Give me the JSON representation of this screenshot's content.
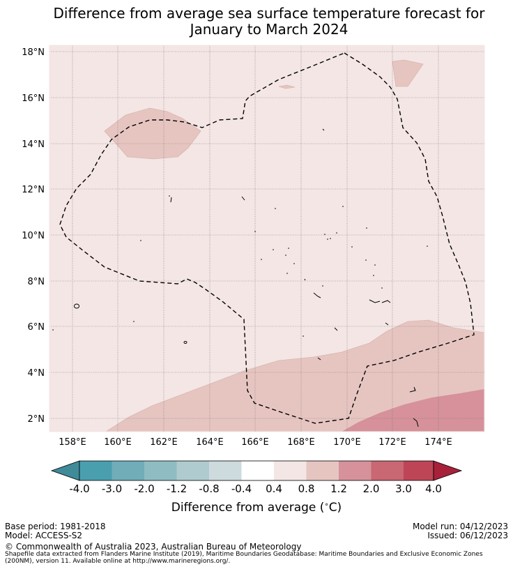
{
  "title_line1": "Difference from average sea surface temperature forecast for",
  "title_line2": "January to March 2024",
  "chart_data": {
    "type": "map",
    "lat_ticks": [
      "2°N",
      "4°N",
      "6°N",
      "8°N",
      "10°N",
      "12°N",
      "14°N",
      "16°N",
      "18°N"
    ],
    "lon_ticks": [
      "158°E",
      "160°E",
      "162°E",
      "164°E",
      "166°E",
      "168°E",
      "170°E",
      "172°E",
      "174°E"
    ],
    "lat_range": [
      1.4,
      18.3
    ],
    "lon_range": [
      157.0,
      176.0
    ],
    "grid": true,
    "colorbar": {
      "title": "Difference from average (",
      "title_unit": "∘",
      "title_end": "C)",
      "labels": [
        "-4.0",
        "-3.0",
        "-2.0",
        "-1.2",
        "-0.8",
        "-0.4",
        "0.4",
        "0.8",
        "1.2",
        "2.0",
        "3.0",
        "4.0"
      ],
      "colors": [
        "#4a9fae",
        "#70adb9",
        "#8fbcc3",
        "#afcbd0",
        "#cddbdf",
        "#ffffff",
        "#f3e6e4",
        "#e6c5c1",
        "#d6919a",
        "#c96772",
        "#be4556"
      ],
      "extend_low": "#3f8b99",
      "extend_high": "#a8213a"
    },
    "fill_classes": {
      "background": "0.4 to 0.8",
      "light_patches": "0.8 to 1.2",
      "dark_patch": "1.2 to 2.0"
    }
  },
  "footer": {
    "base_period": "Base period: 1981-2018",
    "model": "Model: ACCESS-S2",
    "model_run": "Model run: 04/12/2023",
    "issued": "Issued: 06/12/2023",
    "copyright": "© Commonwealth of Australia 2023, Australian Bureau of Meteorology",
    "source_line1": "Shapefile data extracted from Flanders Marine Institute (2019), Maritime Boundaries Geodatabase: Maritime Boundaries and Exclusive Economic Zones",
    "source_line2": "(200NM), version 11. Available online at http://www.marineregions.org/."
  }
}
